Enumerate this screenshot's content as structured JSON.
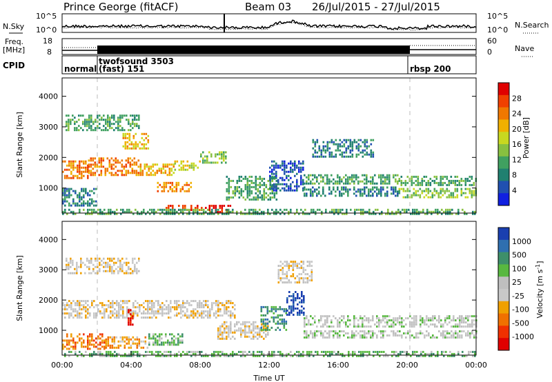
{
  "header": {
    "station": "Prince George (fitACF)",
    "beam": "Beam 03",
    "date_range": "26/Jul/2015 - 27/Jul/2015"
  },
  "left_labels": {
    "nsky": "N.Sky",
    "freq": "Freq.",
    "freq_unit": "[MHz]",
    "cpid": "CPID"
  },
  "right_labels": {
    "nsearch": "N.Search",
    "nave": "Nave"
  },
  "noise_ticks_left": [
    "10^5",
    "10^0"
  ],
  "noise_ticks_right": [
    "10^5",
    "10^0"
  ],
  "freq_ticks": [
    "18",
    "8"
  ],
  "nave_ticks": [
    "60",
    "0"
  ],
  "cpid_segments": [
    {
      "start_hour": 0.0,
      "end_hour": 1.9,
      "label": "normal"
    },
    {
      "start_hour": 1.9,
      "end_hour": 20.0,
      "label": "twofsound 3503",
      "label2": "(fast) 151"
    },
    {
      "start_hour": 20.0,
      "end_hour": 24.0,
      "label": "rbsp 200"
    }
  ],
  "chart_data": [
    {
      "type": "heatmap",
      "title": "",
      "ylabel": "Slant Range [km]",
      "xlabel": "",
      "xlim": [
        0,
        24
      ],
      "ylim": [
        180,
        4600
      ],
      "yticks": [
        "1000",
        "2000",
        "3000",
        "4000"
      ],
      "colorbar": {
        "label": "Power [dB]",
        "ticks": [
          "28",
          "24",
          "20",
          "16",
          "12",
          "8",
          "4"
        ],
        "colors": [
          "#e00000",
          "#f04000",
          "#f07800",
          "#f0b000",
          "#c8d820",
          "#88c040",
          "#40a060",
          "#208070",
          "#2050b0",
          "#1020e0"
        ]
      },
      "bands": [
        {
          "x_start": 0.0,
          "x_end": 1.5,
          "y_start": 1300,
          "y_end": 1900,
          "color_index": 2
        },
        {
          "x_start": 1.5,
          "x_end": 4.5,
          "y_start": 1400,
          "y_end": 2000,
          "color_index": 2
        },
        {
          "x_start": 4.5,
          "x_end": 6.5,
          "y_start": 1450,
          "y_end": 1800,
          "color_index": 3
        },
        {
          "x_start": 6.5,
          "x_end": 8.0,
          "y_start": 1600,
          "y_end": 1900,
          "color_index": 4
        },
        {
          "x_start": 8.0,
          "x_end": 9.5,
          "y_start": 1800,
          "y_end": 2200,
          "color_index": 5
        },
        {
          "x_start": 0.0,
          "x_end": 2.0,
          "y_start": 400,
          "y_end": 1000,
          "color_index": 7
        },
        {
          "x_start": 0.2,
          "x_end": 4.5,
          "y_start": 2900,
          "y_end": 3400,
          "color_index": 6
        },
        {
          "x_start": 3.5,
          "x_end": 5.0,
          "y_start": 2300,
          "y_end": 2800,
          "color_index": 3
        },
        {
          "x_start": 5.5,
          "x_end": 7.5,
          "y_start": 900,
          "y_end": 1200,
          "color_index": 2
        },
        {
          "x_start": 6.0,
          "x_end": 8.5,
          "y_start": 250,
          "y_end": 450,
          "color_index": 1
        },
        {
          "x_start": 8.5,
          "x_end": 9.8,
          "y_start": 180,
          "y_end": 450,
          "color_index": 0
        },
        {
          "x_start": 9.5,
          "x_end": 12.5,
          "y_start": 600,
          "y_end": 1400,
          "color_index": 6
        },
        {
          "x_start": 12.0,
          "x_end": 14.0,
          "y_start": 900,
          "y_end": 1900,
          "color_index": 8
        },
        {
          "x_start": 14.0,
          "x_end": 19.5,
          "y_start": 1150,
          "y_end": 1450,
          "color_index": 6
        },
        {
          "x_start": 14.0,
          "x_end": 19.5,
          "y_start": 750,
          "y_end": 1050,
          "color_index": 7
        },
        {
          "x_start": 19.5,
          "x_end": 24.0,
          "y_start": 1100,
          "y_end": 1400,
          "color_index": 6
        },
        {
          "x_start": 19.5,
          "x_end": 24.0,
          "y_start": 700,
          "y_end": 1000,
          "color_index": 5
        },
        {
          "x_start": 14.5,
          "x_end": 18.0,
          "y_start": 2000,
          "y_end": 2600,
          "color_index": 7
        },
        {
          "x_start": 0.0,
          "x_end": 24.0,
          "y_start": 180,
          "y_end": 320,
          "color_index": 6
        }
      ]
    },
    {
      "type": "heatmap",
      "title": "",
      "ylabel": "Slant Range [km]",
      "xlabel": "Time UT",
      "xlim": [
        0,
        24
      ],
      "ylim": [
        180,
        4600
      ],
      "yticks": [
        "1000",
        "2000",
        "3000",
        "4000"
      ],
      "xticks": [
        "00:00",
        "04:00",
        "08:00",
        "12:00",
        "16:00",
        "20:00",
        "00:00"
      ],
      "colorbar": {
        "label": "Velocity [m s",
        "label_sup": "-1",
        "label_end": "]",
        "ticks": [
          "1000",
          "500",
          "100",
          "25",
          "-25",
          "-100",
          "-500",
          "-1000"
        ],
        "colors": [
          "#1a3fb0",
          "#2f6fb0",
          "#3e8f6a",
          "#58b840",
          "#bfbfbf",
          "#c8c8c8",
          "#f0a000",
          "#f07000",
          "#f03000",
          "#e00000"
        ]
      },
      "bands": [
        {
          "x_start": 0.0,
          "x_end": 10.0,
          "y_start": 1400,
          "y_end": 2000,
          "color_index": 5
        },
        {
          "x_start": 0.2,
          "x_end": 4.5,
          "y_start": 2900,
          "y_end": 3400,
          "color_index": 5
        },
        {
          "x_start": 0.0,
          "x_end": 2.5,
          "y_start": 400,
          "y_end": 900,
          "color_index": 7
        },
        {
          "x_start": 2.5,
          "x_end": 5.0,
          "y_start": 400,
          "y_end": 800,
          "color_index": 6
        },
        {
          "x_start": 3.8,
          "x_end": 4.1,
          "y_start": 1100,
          "y_end": 1700,
          "color_index": 9
        },
        {
          "x_start": 5.0,
          "x_end": 7.0,
          "y_start": 500,
          "y_end": 900,
          "color_index": 3
        },
        {
          "x_start": 9.0,
          "x_end": 12.0,
          "y_start": 700,
          "y_end": 1300,
          "color_index": 5
        },
        {
          "x_start": 11.5,
          "x_end": 13.0,
          "y_start": 1000,
          "y_end": 1800,
          "color_index": 2
        },
        {
          "x_start": 13.0,
          "x_end": 14.0,
          "y_start": 1500,
          "y_end": 2300,
          "color_index": 0
        },
        {
          "x_start": 14.0,
          "x_end": 24.0,
          "y_start": 1100,
          "y_end": 1500,
          "color_index": 4
        },
        {
          "x_start": 14.0,
          "x_end": 24.0,
          "y_start": 750,
          "y_end": 1000,
          "color_index": 4
        },
        {
          "x_start": 0.0,
          "x_end": 24.0,
          "y_start": 180,
          "y_end": 320,
          "color_index": 3
        },
        {
          "x_start": 12.5,
          "x_end": 14.5,
          "y_start": 2600,
          "y_end": 3300,
          "color_index": 5
        }
      ]
    }
  ]
}
